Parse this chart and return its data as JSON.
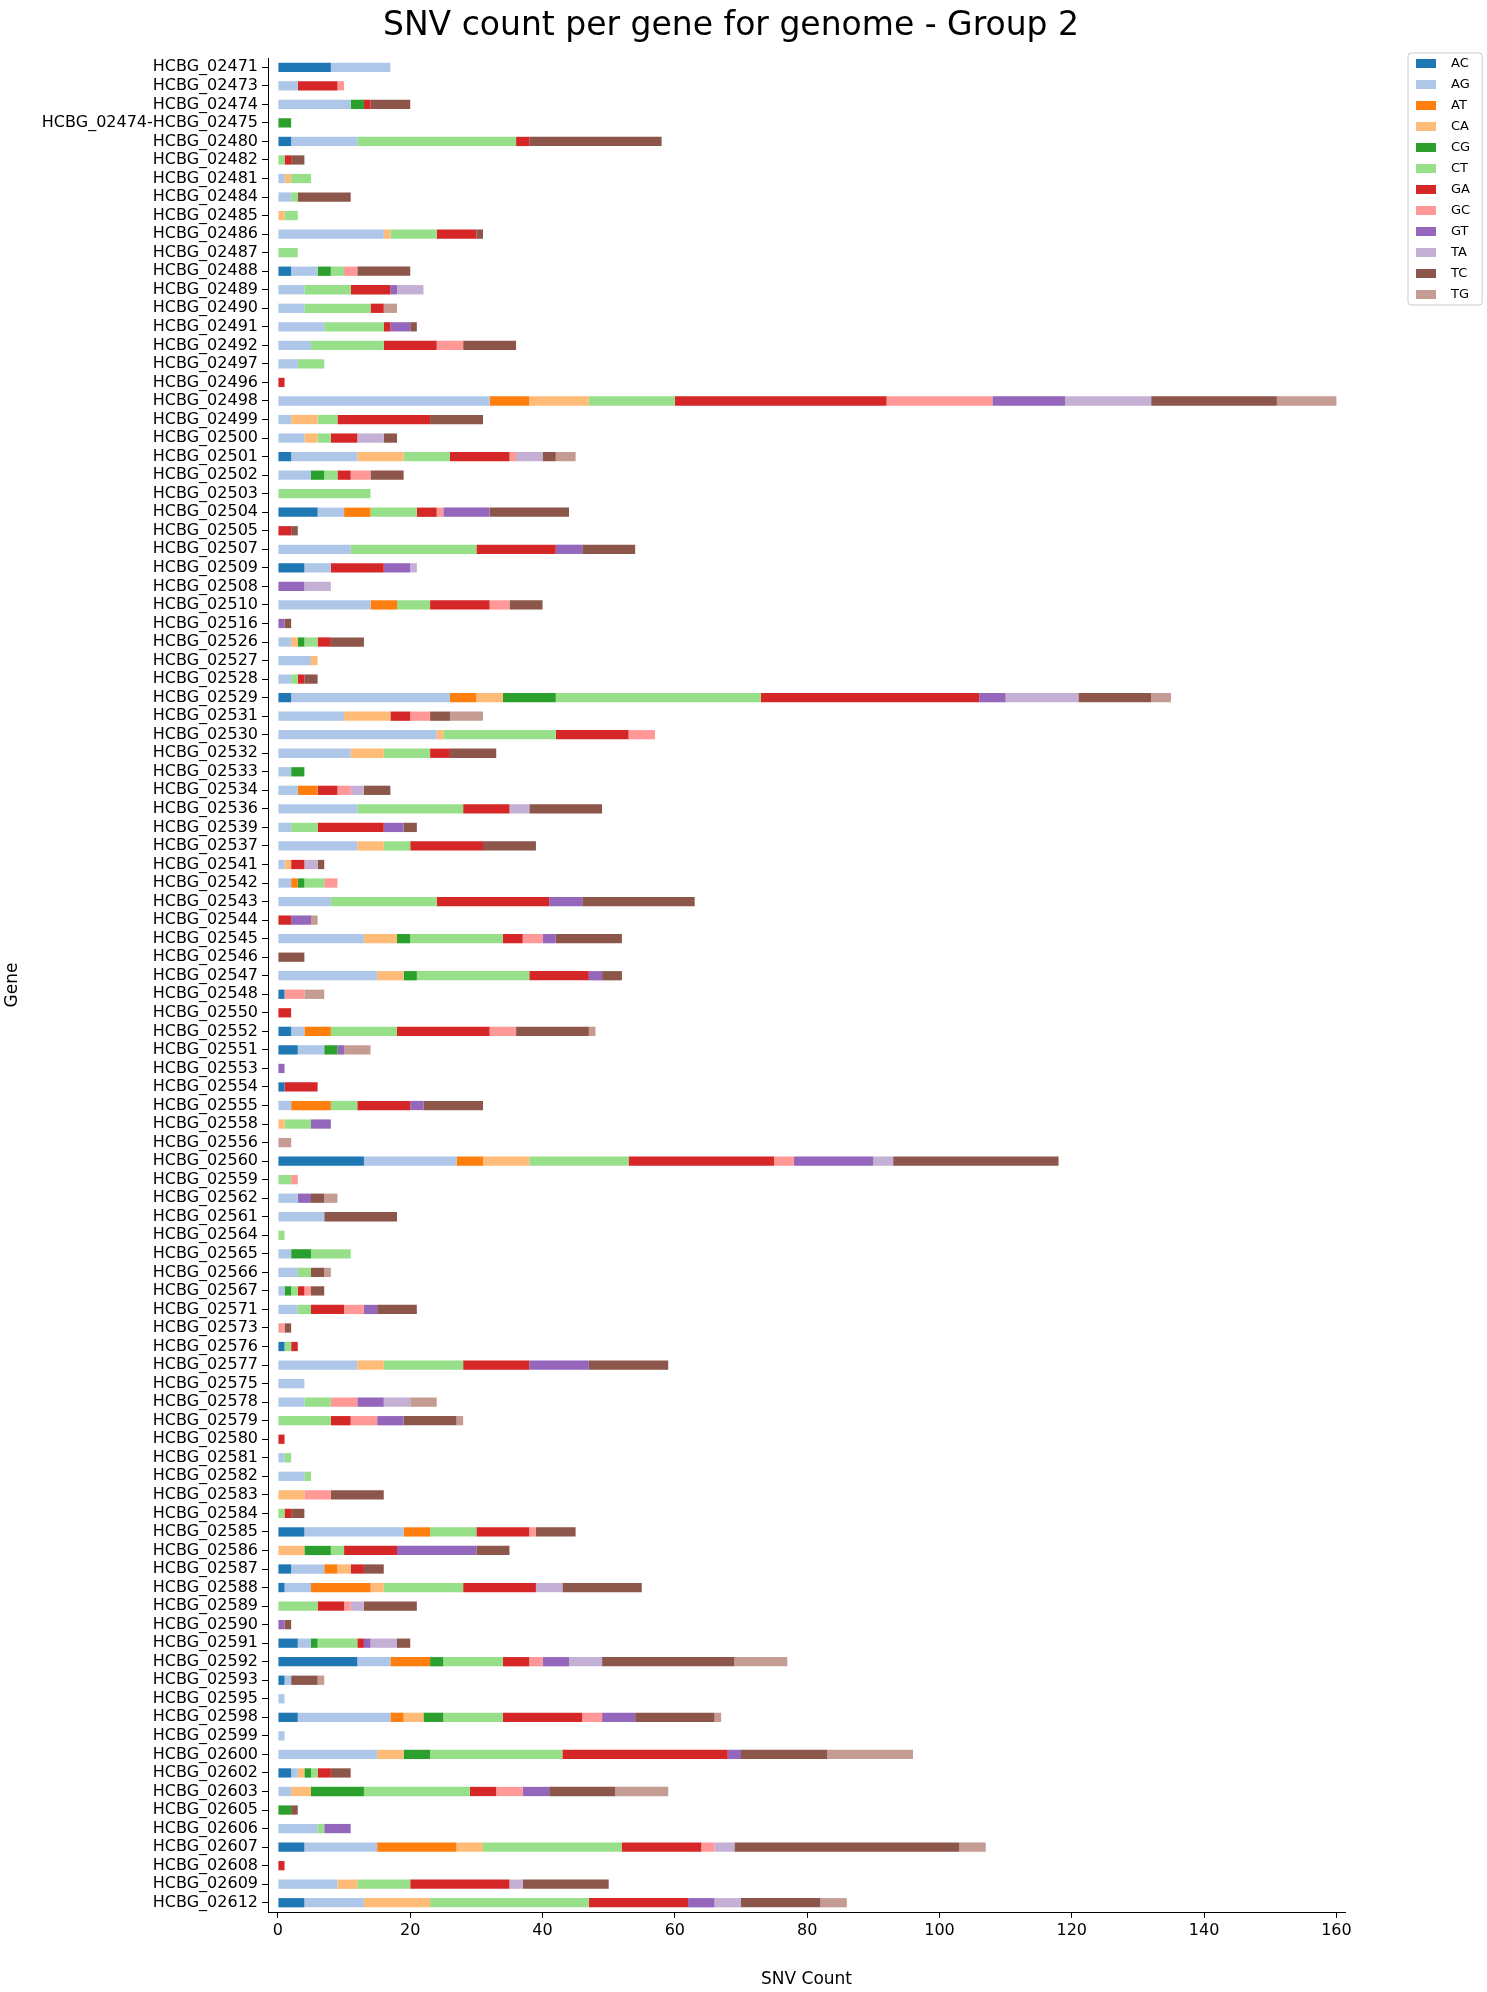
{
  "chart_data": {
    "type": "bar",
    "orientation": "horizontal",
    "stacked": true,
    "title": "SNV count per gene for genome - Group 2",
    "xlabel": "SNV Count",
    "ylabel": "Gene",
    "legend": "top right",
    "grid": false,
    "xlim": [
      -1.5,
      161.3
    ],
    "xticks": [
      0,
      20,
      40,
      60,
      80,
      100,
      120,
      140,
      160
    ],
    "categories": [
      "HCBG_02471",
      "HCBG_02473",
      "HCBG_02474",
      "HCBG_02474-HCBG_02475",
      "HCBG_02480",
      "HCBG_02482",
      "HCBG_02481",
      "HCBG_02484",
      "HCBG_02485",
      "HCBG_02486",
      "HCBG_02487",
      "HCBG_02488",
      "HCBG_02489",
      "HCBG_02490",
      "HCBG_02491",
      "HCBG_02492",
      "HCBG_02497",
      "HCBG_02496",
      "HCBG_02498",
      "HCBG_02499",
      "HCBG_02500",
      "HCBG_02501",
      "HCBG_02502",
      "HCBG_02503",
      "HCBG_02504",
      "HCBG_02505",
      "HCBG_02507",
      "HCBG_02509",
      "HCBG_02508",
      "HCBG_02510",
      "HCBG_02516",
      "HCBG_02526",
      "HCBG_02527",
      "HCBG_02528",
      "HCBG_02529",
      "HCBG_02531",
      "HCBG_02530",
      "HCBG_02532",
      "HCBG_02533",
      "HCBG_02534",
      "HCBG_02536",
      "HCBG_02539",
      "HCBG_02537",
      "HCBG_02541",
      "HCBG_02542",
      "HCBG_02543",
      "HCBG_02544",
      "HCBG_02545",
      "HCBG_02546",
      "HCBG_02547",
      "HCBG_02548",
      "HCBG_02550",
      "HCBG_02552",
      "HCBG_02551",
      "HCBG_02553",
      "HCBG_02554",
      "HCBG_02555",
      "HCBG_02558",
      "HCBG_02556",
      "HCBG_02560",
      "HCBG_02559",
      "HCBG_02562",
      "HCBG_02561",
      "HCBG_02564",
      "HCBG_02565",
      "HCBG_02566",
      "HCBG_02567",
      "HCBG_02571",
      "HCBG_02573",
      "HCBG_02576",
      "HCBG_02577",
      "HCBG_02575",
      "HCBG_02578",
      "HCBG_02579",
      "HCBG_02580",
      "HCBG_02581",
      "HCBG_02582",
      "HCBG_02583",
      "HCBG_02584",
      "HCBG_02585",
      "HCBG_02586",
      "HCBG_02587",
      "HCBG_02588",
      "HCBG_02589",
      "HCBG_02590",
      "HCBG_02591",
      "HCBG_02592",
      "HCBG_02593",
      "HCBG_02595",
      "HCBG_02598",
      "HCBG_02599",
      "HCBG_02600",
      "HCBG_02602",
      "HCBG_02603",
      "HCBG_02605",
      "HCBG_02606",
      "HCBG_02607",
      "HCBG_02608",
      "HCBG_02609",
      "HCBG_02612"
    ],
    "series": [
      {
        "name": "AC",
        "color": "#1f77b4",
        "values": [
          8,
          null,
          null,
          null,
          2,
          null,
          null,
          null,
          null,
          null,
          null,
          2,
          null,
          null,
          null,
          null,
          null,
          null,
          null,
          null,
          null,
          2,
          null,
          null,
          6,
          null,
          null,
          4,
          null,
          null,
          null,
          null,
          null,
          null,
          2,
          null,
          null,
          null,
          null,
          null,
          null,
          null,
          null,
          null,
          null,
          null,
          null,
          null,
          null,
          null,
          1,
          null,
          2,
          3,
          null,
          1,
          null,
          null,
          null,
          13,
          null,
          null,
          null,
          null,
          null,
          null,
          null,
          null,
          null,
          1,
          null,
          null,
          null,
          null,
          null,
          null,
          null,
          null,
          null,
          4,
          null,
          2,
          1,
          null,
          null,
          3,
          12,
          1,
          null,
          3,
          null,
          null,
          2,
          null,
          null,
          null,
          4,
          null,
          null,
          4
        ]
      },
      {
        "name": "AG",
        "color": "#aec7e8",
        "values": [
          9,
          3,
          11,
          null,
          10,
          null,
          1,
          2,
          null,
          16,
          null,
          4,
          4,
          4,
          7,
          5,
          3,
          null,
          32,
          2,
          4,
          10,
          5,
          null,
          4,
          null,
          11,
          4,
          null,
          14,
          null,
          2,
          5,
          2,
          24,
          10,
          24,
          11,
          2,
          3,
          12,
          2,
          12,
          1,
          2,
          8,
          null,
          13,
          null,
          15,
          null,
          null,
          2,
          4,
          null,
          null,
          2,
          null,
          null,
          14,
          null,
          3,
          7,
          null,
          2,
          3,
          1,
          3,
          null,
          null,
          12,
          4,
          4,
          null,
          null,
          1,
          4,
          null,
          null,
          15,
          null,
          5,
          4,
          null,
          null,
          2,
          5,
          1,
          1,
          14,
          1,
          15,
          1,
          2,
          null,
          6,
          11,
          null,
          9,
          9
        ]
      },
      {
        "name": "AT",
        "color": "#ff7f0e",
        "values": [
          null,
          null,
          null,
          null,
          null,
          null,
          null,
          null,
          null,
          null,
          null,
          null,
          null,
          null,
          null,
          null,
          null,
          null,
          6,
          null,
          null,
          null,
          null,
          null,
          4,
          null,
          null,
          null,
          null,
          4,
          null,
          null,
          null,
          null,
          4,
          null,
          null,
          null,
          null,
          3,
          null,
          null,
          null,
          null,
          1,
          null,
          null,
          null,
          null,
          null,
          null,
          null,
          4,
          null,
          null,
          null,
          6,
          null,
          null,
          4,
          null,
          null,
          null,
          null,
          null,
          null,
          null,
          null,
          null,
          null,
          null,
          null,
          null,
          null,
          null,
          null,
          null,
          null,
          null,
          4,
          null,
          2,
          9,
          null,
          null,
          null,
          6,
          null,
          null,
          2,
          null,
          null,
          null,
          null,
          null,
          null,
          12,
          null,
          null,
          null
        ]
      },
      {
        "name": "CA",
        "color": "#ffbb78",
        "values": [
          null,
          null,
          null,
          null,
          null,
          null,
          1,
          null,
          1,
          1,
          null,
          null,
          null,
          null,
          null,
          null,
          null,
          null,
          9,
          4,
          2,
          7,
          null,
          null,
          null,
          null,
          null,
          null,
          null,
          null,
          null,
          1,
          1,
          null,
          4,
          7,
          1,
          5,
          null,
          null,
          null,
          null,
          4,
          1,
          null,
          null,
          null,
          5,
          null,
          4,
          null,
          null,
          null,
          null,
          null,
          null,
          null,
          1,
          null,
          7,
          null,
          null,
          null,
          null,
          null,
          null,
          null,
          null,
          null,
          null,
          4,
          null,
          null,
          null,
          null,
          null,
          null,
          4,
          null,
          null,
          4,
          2,
          2,
          null,
          null,
          null,
          null,
          null,
          null,
          3,
          null,
          4,
          1,
          3,
          null,
          null,
          4,
          null,
          3,
          10
        ]
      },
      {
        "name": "CG",
        "color": "#2ca02c",
        "values": [
          null,
          null,
          2,
          2,
          null,
          null,
          null,
          null,
          null,
          null,
          null,
          2,
          null,
          null,
          null,
          null,
          null,
          null,
          null,
          null,
          null,
          null,
          2,
          null,
          null,
          null,
          null,
          null,
          null,
          null,
          null,
          1,
          null,
          null,
          8,
          null,
          null,
          null,
          2,
          null,
          null,
          null,
          null,
          null,
          1,
          null,
          null,
          2,
          null,
          2,
          null,
          null,
          null,
          2,
          null,
          null,
          null,
          null,
          null,
          null,
          null,
          null,
          null,
          null,
          3,
          null,
          1,
          null,
          null,
          null,
          null,
          null,
          null,
          null,
          null,
          null,
          null,
          null,
          null,
          null,
          4,
          null,
          null,
          null,
          null,
          1,
          2,
          null,
          null,
          3,
          null,
          4,
          1,
          8,
          2,
          null,
          null,
          null,
          null,
          null
        ]
      },
      {
        "name": "CT",
        "color": "#98df8a",
        "values": [
          null,
          null,
          null,
          null,
          24,
          1,
          3,
          1,
          2,
          7,
          3,
          2,
          7,
          10,
          9,
          11,
          4,
          null,
          13,
          3,
          2,
          7,
          2,
          14,
          7,
          null,
          19,
          null,
          null,
          5,
          null,
          2,
          null,
          1,
          31,
          null,
          17,
          7,
          null,
          null,
          16,
          4,
          4,
          null,
          3,
          16,
          null,
          14,
          null,
          17,
          null,
          null,
          10,
          null,
          null,
          null,
          4,
          4,
          null,
          15,
          2,
          null,
          null,
          1,
          6,
          2,
          1,
          2,
          null,
          1,
          12,
          null,
          4,
          8,
          null,
          1,
          1,
          null,
          1,
          7,
          2,
          null,
          12,
          6,
          null,
          6,
          9,
          null,
          null,
          9,
          null,
          20,
          1,
          16,
          null,
          1,
          21,
          null,
          8,
          24
        ]
      },
      {
        "name": "GA",
        "color": "#d62728",
        "values": [
          null,
          6,
          1,
          null,
          2,
          1,
          null,
          null,
          null,
          6,
          null,
          null,
          6,
          2,
          1,
          8,
          null,
          1,
          32,
          14,
          4,
          9,
          2,
          null,
          3,
          2,
          12,
          8,
          null,
          9,
          null,
          2,
          null,
          1,
          33,
          3,
          11,
          3,
          null,
          3,
          7,
          10,
          11,
          2,
          null,
          17,
          2,
          3,
          null,
          9,
          null,
          2,
          14,
          null,
          null,
          5,
          8,
          null,
          null,
          22,
          null,
          null,
          null,
          null,
          null,
          null,
          1,
          5,
          null,
          1,
          10,
          null,
          null,
          3,
          1,
          null,
          null,
          null,
          1,
          8,
          8,
          2,
          11,
          4,
          null,
          1,
          4,
          null,
          null,
          12,
          null,
          25,
          2,
          4,
          null,
          null,
          12,
          1,
          15,
          15
        ]
      },
      {
        "name": "GC",
        "color": "#ff9896",
        "values": [
          null,
          1,
          null,
          null,
          null,
          null,
          null,
          null,
          null,
          null,
          null,
          2,
          null,
          null,
          null,
          4,
          null,
          null,
          16,
          null,
          null,
          1,
          3,
          null,
          1,
          null,
          null,
          null,
          null,
          3,
          null,
          null,
          null,
          null,
          null,
          3,
          4,
          null,
          null,
          2,
          null,
          null,
          null,
          null,
          2,
          null,
          null,
          3,
          null,
          null,
          3,
          null,
          4,
          null,
          null,
          null,
          null,
          null,
          null,
          3,
          1,
          null,
          null,
          null,
          null,
          null,
          1,
          3,
          1,
          null,
          null,
          null,
          4,
          4,
          null,
          null,
          null,
          4,
          null,
          1,
          null,
          null,
          null,
          1,
          null,
          null,
          2,
          null,
          null,
          3,
          null,
          null,
          null,
          4,
          null,
          null,
          2,
          null,
          null,
          null
        ]
      },
      {
        "name": "GT",
        "color": "#9467bd",
        "values": [
          null,
          null,
          null,
          null,
          null,
          null,
          null,
          null,
          null,
          null,
          null,
          null,
          1,
          null,
          3,
          null,
          null,
          null,
          11,
          null,
          null,
          null,
          null,
          null,
          7,
          null,
          4,
          4,
          4,
          null,
          1,
          null,
          null,
          null,
          4,
          null,
          null,
          null,
          null,
          null,
          null,
          3,
          null,
          null,
          null,
          5,
          3,
          2,
          null,
          2,
          null,
          null,
          null,
          1,
          1,
          null,
          2,
          3,
          null,
          12,
          null,
          2,
          null,
          null,
          null,
          null,
          null,
          2,
          null,
          null,
          9,
          null,
          4,
          4,
          null,
          null,
          null,
          null,
          null,
          null,
          12,
          null,
          null,
          null,
          1,
          1,
          4,
          null,
          null,
          5,
          null,
          2,
          null,
          4,
          null,
          4,
          null,
          null,
          null,
          4
        ]
      },
      {
        "name": "TA",
        "color": "#c5b0d5",
        "values": [
          null,
          null,
          null,
          null,
          null,
          null,
          null,
          null,
          null,
          null,
          null,
          null,
          4,
          null,
          null,
          null,
          null,
          null,
          13,
          null,
          4,
          4,
          null,
          null,
          null,
          null,
          null,
          1,
          4,
          null,
          null,
          null,
          null,
          null,
          11,
          null,
          null,
          null,
          null,
          2,
          3,
          null,
          null,
          2,
          null,
          null,
          null,
          null,
          null,
          null,
          null,
          null,
          null,
          null,
          null,
          null,
          null,
          null,
          null,
          3,
          null,
          null,
          null,
          null,
          null,
          null,
          null,
          null,
          null,
          null,
          null,
          null,
          4,
          null,
          null,
          null,
          null,
          null,
          null,
          null,
          null,
          null,
          4,
          2,
          null,
          4,
          5,
          null,
          null,
          null,
          null,
          null,
          null,
          null,
          null,
          null,
          3,
          null,
          2,
          4
        ]
      },
      {
        "name": "TC",
        "color": "#8c564b",
        "values": [
          null,
          null,
          6,
          null,
          20,
          2,
          null,
          8,
          null,
          1,
          null,
          8,
          null,
          null,
          1,
          8,
          null,
          null,
          19,
          8,
          2,
          2,
          5,
          null,
          12,
          1,
          8,
          null,
          null,
          5,
          1,
          5,
          null,
          2,
          11,
          3,
          null,
          7,
          null,
          4,
          11,
          2,
          8,
          1,
          null,
          17,
          null,
          10,
          4,
          3,
          null,
          null,
          11,
          null,
          null,
          null,
          9,
          null,
          null,
          25,
          null,
          2,
          11,
          null,
          null,
          2,
          2,
          6,
          1,
          null,
          12,
          null,
          null,
          8,
          null,
          null,
          null,
          8,
          2,
          6,
          5,
          3,
          12,
          8,
          1,
          2,
          20,
          4,
          null,
          12,
          null,
          13,
          3,
          10,
          1,
          null,
          34,
          null,
          13,
          12
        ]
      },
      {
        "name": "TG",
        "color": "#c49c94",
        "values": [
          null,
          null,
          null,
          null,
          null,
          null,
          null,
          null,
          null,
          null,
          null,
          null,
          null,
          2,
          null,
          null,
          null,
          null,
          9,
          null,
          null,
          3,
          null,
          null,
          null,
          null,
          null,
          null,
          null,
          null,
          null,
          null,
          null,
          null,
          3,
          5,
          null,
          null,
          null,
          null,
          null,
          null,
          null,
          null,
          null,
          null,
          1,
          null,
          null,
          null,
          3,
          null,
          1,
          4,
          null,
          null,
          null,
          null,
          2,
          null,
          null,
          2,
          null,
          null,
          null,
          1,
          null,
          null,
          null,
          null,
          null,
          null,
          4,
          1,
          null,
          null,
          null,
          null,
          null,
          null,
          null,
          null,
          null,
          null,
          null,
          null,
          8,
          1,
          null,
          1,
          null,
          13,
          null,
          8,
          null,
          null,
          4,
          null,
          null,
          4
        ]
      }
    ]
  }
}
